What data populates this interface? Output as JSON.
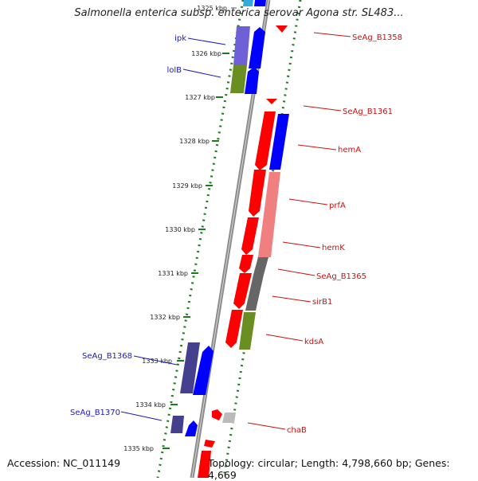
{
  "title": "Salmonella enterica subsp. enterica serovar Agona str. SL483...",
  "accession": "Accession: NC_011149",
  "topology": "Topology: circular; Length: 4,798,660 bp; Genes: 4,669",
  "ticks": [
    {
      "label": "1325 kbp",
      "faded": true
    },
    {
      "label": "1326 kbp"
    },
    {
      "label": "1327 kbp"
    },
    {
      "label": "1328 kbp"
    },
    {
      "label": "1329 kbp"
    },
    {
      "label": "1330 kbp"
    },
    {
      "label": "1331 kbp"
    },
    {
      "label": "1332 kbp"
    },
    {
      "label": "1333 kbp"
    },
    {
      "label": "1334 kbp"
    },
    {
      "label": "1335 kbp"
    }
  ],
  "left_labels": [
    {
      "text": "ipk"
    },
    {
      "text": "lolB"
    },
    {
      "text": "SeAg_B1368"
    },
    {
      "text": "SeAg_B1370"
    }
  ],
  "right_labels": [
    {
      "text": "SeAg_B1358"
    },
    {
      "text": "SeAg_B1361"
    },
    {
      "text": "hemA"
    },
    {
      "text": "prfA"
    },
    {
      "text": "hemK"
    },
    {
      "text": "SeAg_B1365"
    },
    {
      "text": "sirB1"
    },
    {
      "text": "kdsA"
    },
    {
      "text": "chaB"
    }
  ],
  "colors": {
    "label_left": "#1a1ab8",
    "label_right": "#cc1111",
    "tick": "#1f7a1f",
    "axis": "#8c8c8c",
    "red": "#ff0000",
    "pink": "#f08080",
    "blue": "#0000ff",
    "slate": "#45408e",
    "purple": "#7060d8",
    "olive": "#6b8e23",
    "gray": "#666666"
  }
}
